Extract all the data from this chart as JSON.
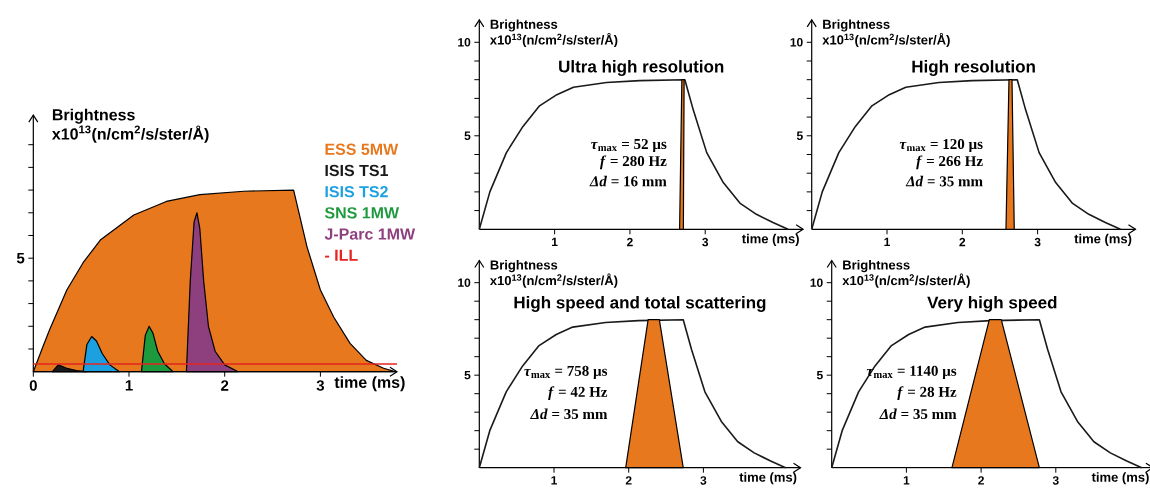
{
  "chart_data": [
    {
      "type": "area",
      "xlabel": "time (ms)",
      "ylabel": "Brightness x10$^{13}$(n/cm$^{2}$/s/ster/Å)",
      "xlim": [
        0,
        3.8
      ],
      "ylim": [
        0,
        11.3
      ],
      "xticks": [
        0,
        1,
        2,
        3
      ],
      "yticks": [
        {
          "value": 1,
          "label": null
        },
        {
          "value": 2,
          "label": null
        },
        {
          "value": 3,
          "label": null
        },
        {
          "value": 4,
          "label": null
        },
        5,
        {
          "value": 6,
          "label": null
        },
        {
          "value": 7,
          "label": null
        },
        {
          "value": 8,
          "label": null
        },
        {
          "value": 9,
          "label": null
        },
        {
          "value": 10,
          "label": null
        }
      ],
      "legend": "top right",
      "series": [
        {
          "name": "ESS 5MW",
          "color": "#e8781e",
          "x": [
            0,
            0.1,
            0.17,
            0.35,
            0.52,
            0.7,
            1.05,
            1.39,
            1.74,
            2.2,
            2.72,
            2.86,
            3.0,
            3.14,
            3.31,
            3.48,
            3.66,
            3.78
          ],
          "values": [
            0,
            1.1,
            1.85,
            3.6,
            4.8,
            5.8,
            6.9,
            7.5,
            7.8,
            7.95,
            8,
            5.5,
            3.6,
            2.4,
            1.25,
            0.5,
            0.15,
            0
          ]
        },
        {
          "name": "ISIS TS1",
          "color": "#1a1a1a",
          "x": [
            0.2,
            0.26,
            0.35,
            0.45,
            0.55
          ],
          "values": [
            0,
            0.3,
            0.15,
            0.05,
            0
          ]
        },
        {
          "name": "ISIS TS2",
          "color": "#1ca0e0",
          "x": [
            0.52,
            0.56,
            0.61,
            0.66,
            0.72,
            0.8,
            0.9
          ],
          "values": [
            0,
            1.2,
            1.55,
            1.35,
            0.8,
            0.3,
            0
          ]
        },
        {
          "name": "SNS 1MW",
          "color": "#1e9a3e",
          "x": [
            1.13,
            1.17,
            1.21,
            1.25,
            1.3,
            1.37,
            1.46
          ],
          "values": [
            0,
            1.6,
            2.0,
            1.7,
            0.9,
            0.35,
            0
          ]
        },
        {
          "name": "J-Parc 1MW",
          "color": "#8e3f7e",
          "x": [
            1.6,
            1.64,
            1.68,
            1.71,
            1.74,
            1.78,
            1.83,
            1.9,
            2.0,
            2.14
          ],
          "values": [
            0,
            4,
            6.6,
            7.0,
            6.3,
            4,
            2,
            0.9,
            0.3,
            0
          ]
        },
        {
          "name": "- ILL",
          "type": "line",
          "color": "#e52420",
          "x": [
            0,
            3.8
          ],
          "values": [
            0.34,
            0.34
          ]
        }
      ]
    },
    {
      "type": "area",
      "title": "Ultra high resolution",
      "xlabel": "time (ms)",
      "ylabel": "Brightness x10$^{13}$(n/cm$^{2}$/s/ster/Å)",
      "xlim": [
        0,
        4.3
      ],
      "ylim": [
        0,
        11.2
      ],
      "xticks": [
        1,
        2,
        3
      ],
      "yticks": [
        {
          "value": 1,
          "label": null
        },
        {
          "value": 2,
          "label": null
        },
        {
          "value": 3,
          "label": null
        },
        {
          "value": 4,
          "label": null
        },
        5,
        {
          "value": 6,
          "label": null
        },
        {
          "value": 7,
          "label": null
        },
        {
          "value": 8,
          "label": null
        },
        {
          "value": 9,
          "label": null
        },
        10
      ],
      "annotations": [
        "*τ*$_{max}$ = 52 µs",
        "*f* = 280 Hz",
        "*Δd* = 16 mm"
      ],
      "series": [
        {
          "type": "line",
          "color": "#1a1a1a",
          "x": [
            0,
            0.14,
            0.36,
            0.58,
            0.8,
            1.03,
            1.25,
            1.69,
            2.13,
            2.73,
            2.84,
            3.02,
            3.24,
            3.46,
            3.68,
            3.9,
            4.1
          ],
          "values": [
            0,
            2.0,
            4.1,
            5.5,
            6.6,
            7.2,
            7.6,
            7.85,
            7.95,
            8,
            6.4,
            4.1,
            2.5,
            1.4,
            0.8,
            0.36,
            0
          ]
        },
        {
          "color": "#e8781e",
          "x": [
            2.66,
            2.69,
            2.72,
            2.71
          ],
          "values": [
            0,
            8,
            8,
            0
          ]
        }
      ]
    },
    {
      "type": "area",
      "title": "High resolution",
      "xlabel": "time (ms)",
      "ylabel": "Brightness x10$^{13}$(n/cm$^{2}$/s/ster/Å)",
      "xlim": [
        0,
        4.3
      ],
      "ylim": [
        0,
        11.2
      ],
      "xticks": [
        1,
        2,
        3
      ],
      "yticks": [
        {
          "value": 1,
          "label": null
        },
        {
          "value": 2,
          "label": null
        },
        {
          "value": 3,
          "label": null
        },
        {
          "value": 4,
          "label": null
        },
        5,
        {
          "value": 6,
          "label": null
        },
        {
          "value": 7,
          "label": null
        },
        {
          "value": 8,
          "label": null
        },
        {
          "value": 9,
          "label": null
        },
        10
      ],
      "annotations": [
        "*τ*$_{max}$ = 120 µs",
        "*f* = 266 Hz",
        "*Δd* = 35 mm"
      ],
      "series": [
        {
          "type": "line",
          "color": "#1a1a1a",
          "x": [
            0,
            0.14,
            0.36,
            0.58,
            0.8,
            1.03,
            1.25,
            1.69,
            2.13,
            2.73,
            2.84,
            3.02,
            3.24,
            3.46,
            3.68,
            3.9,
            4.1
          ],
          "values": [
            0,
            2.0,
            4.1,
            5.5,
            6.6,
            7.2,
            7.6,
            7.85,
            7.95,
            8,
            6.4,
            4.1,
            2.5,
            1.4,
            0.8,
            0.36,
            0
          ]
        },
        {
          "color": "#e8781e",
          "x": [
            2.58,
            2.62,
            2.66,
            2.69
          ],
          "values": [
            0,
            8,
            8,
            0
          ]
        }
      ]
    },
    {
      "type": "area",
      "title": "High speed and total scattering",
      "xlabel": "time (ms)",
      "ylabel": "Brightness x10$^{13}$(n/cm$^{2}$/s/ster/Å)",
      "xlim": [
        0,
        4.3
      ],
      "ylim": [
        0,
        11.2
      ],
      "xticks": [
        1,
        2,
        3
      ],
      "yticks": [
        {
          "value": 1,
          "label": null
        },
        {
          "value": 2,
          "label": null
        },
        {
          "value": 3,
          "label": null
        },
        {
          "value": 4,
          "label": null
        },
        5,
        {
          "value": 6,
          "label": null
        },
        {
          "value": 7,
          "label": null
        },
        {
          "value": 8,
          "label": null
        },
        {
          "value": 9,
          "label": null
        },
        10
      ],
      "annotations": [
        "*τ*$_{max}$ = 758 µs",
        "*f* = 42 Hz",
        "*Δd* = 35 mm"
      ],
      "series": [
        {
          "type": "line",
          "color": "#1a1a1a",
          "x": [
            0,
            0.14,
            0.36,
            0.58,
            0.8,
            1.03,
            1.25,
            1.69,
            2.13,
            2.73,
            2.84,
            3.02,
            3.24,
            3.46,
            3.68,
            3.9,
            4.1
          ],
          "values": [
            0,
            2.0,
            4.1,
            5.5,
            6.6,
            7.2,
            7.6,
            7.85,
            7.95,
            8,
            6.4,
            4.1,
            2.5,
            1.4,
            0.8,
            0.36,
            0
          ]
        },
        {
          "color": "#e8781e",
          "x": [
            1.96,
            2.26,
            2.41,
            2.73
          ],
          "values": [
            0,
            8,
            8,
            0
          ]
        }
      ]
    },
    {
      "type": "area",
      "title": "Very high speed",
      "xlabel": "time (ms)",
      "ylabel": "Brightness x10$^{13}$(n/cm$^{2}$/s/ster/Å)",
      "xlim": [
        0,
        4.3
      ],
      "ylim": [
        0,
        11.2
      ],
      "xticks": [
        1,
        2,
        3
      ],
      "yticks": [
        {
          "value": 1,
          "label": null
        },
        {
          "value": 2,
          "label": null
        },
        {
          "value": 3,
          "label": null
        },
        {
          "value": 4,
          "label": null
        },
        5,
        {
          "value": 6,
          "label": null
        },
        {
          "value": 7,
          "label": null
        },
        {
          "value": 8,
          "label": null
        },
        {
          "value": 9,
          "label": null
        },
        10
      ],
      "annotations": [
        "*τ*$_{max}$ = 1140 µs",
        "*f* = 28 Hz",
        "*Δd* = 35 mm"
      ],
      "series": [
        {
          "type": "line",
          "color": "#1a1a1a",
          "x": [
            0,
            0.14,
            0.36,
            0.58,
            0.8,
            1.03,
            1.25,
            1.69,
            2.13,
            2.78,
            2.89,
            3.07,
            3.29,
            3.51,
            3.73,
            3.95,
            4.15
          ],
          "values": [
            0,
            2.0,
            4.1,
            5.5,
            6.6,
            7.2,
            7.6,
            7.85,
            7.95,
            8,
            6.4,
            4.1,
            2.5,
            1.4,
            0.8,
            0.36,
            0
          ]
        },
        {
          "color": "#e8781e",
          "x": [
            1.61,
            2.11,
            2.27,
            2.78
          ],
          "values": [
            0,
            8,
            8,
            0
          ]
        }
      ]
    }
  ]
}
